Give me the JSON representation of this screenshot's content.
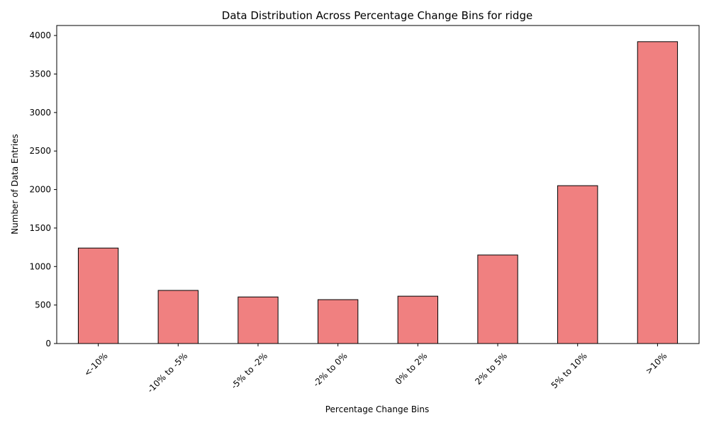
{
  "chart_data": {
    "type": "bar",
    "title": "Data Distribution Across Percentage Change Bins for ridge",
    "xlabel": "Percentage Change Bins",
    "ylabel": "Number of Data Entries",
    "categories": [
      "<-10%",
      "-10% to -5%",
      "-5% to -2%",
      "-2% to 0%",
      "0% to 2%",
      "2% to 5%",
      "5% to 10%",
      ">10%"
    ],
    "values": [
      1240,
      690,
      605,
      570,
      615,
      1150,
      2050,
      3920
    ],
    "ylim": [
      0,
      4130
    ],
    "yticks": [
      0,
      500,
      1000,
      1500,
      2000,
      2500,
      3000,
      3500,
      4000
    ],
    "bar_color": "#f08080",
    "edge_color": "#000000",
    "grid": false,
    "xtick_rotation": 45
  }
}
